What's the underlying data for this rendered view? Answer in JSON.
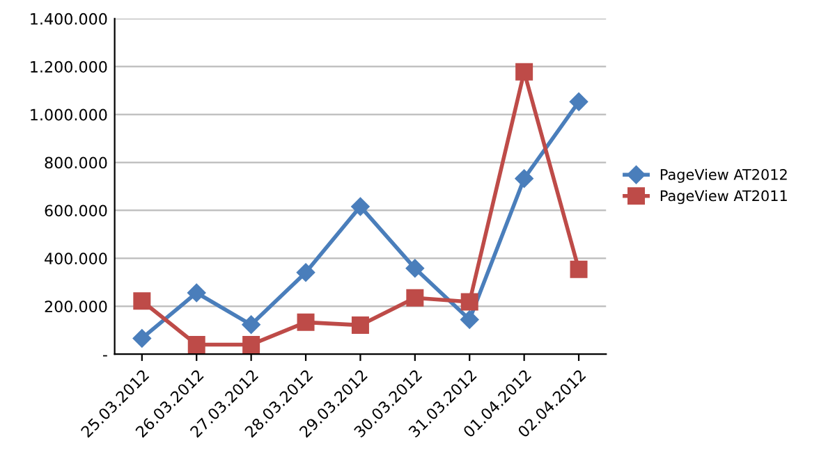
{
  "chart_data": {
    "type": "line",
    "categories": [
      "25.03.2012",
      "26.03.2012",
      "27.03.2012",
      "28.03.2012",
      "29.03.2012",
      "30.03.2012",
      "31.03.2012",
      "01.04.2012",
      "02.04.2012"
    ],
    "series": [
      {
        "name": "PageView AT2012",
        "color": "#4a7ebb",
        "marker": "diamond",
        "values": [
          66000,
          256000,
          123000,
          341000,
          616000,
          358000,
          144000,
          733000,
          1053000
        ]
      },
      {
        "name": "PageView AT2011",
        "color": "#be4b48",
        "marker": "square",
        "values": [
          222000,
          40000,
          40000,
          133000,
          121000,
          235000,
          218000,
          1178000,
          354000
        ]
      }
    ],
    "ylim": [
      0,
      1400000
    ],
    "yticks": [
      {
        "value": 0,
        "label": "-"
      },
      {
        "value": 200000,
        "label": "200.000"
      },
      {
        "value": 400000,
        "label": "400.000"
      },
      {
        "value": 600000,
        "label": "600.000"
      },
      {
        "value": 800000,
        "label": "800.000"
      },
      {
        "value": 1000000,
        "label": "1.000.000"
      },
      {
        "value": 1200000,
        "label": "1.200.000"
      },
      {
        "value": 1400000,
        "label": "1.400.000"
      }
    ],
    "grid": "y",
    "legend": "right",
    "line_style": "solid"
  }
}
